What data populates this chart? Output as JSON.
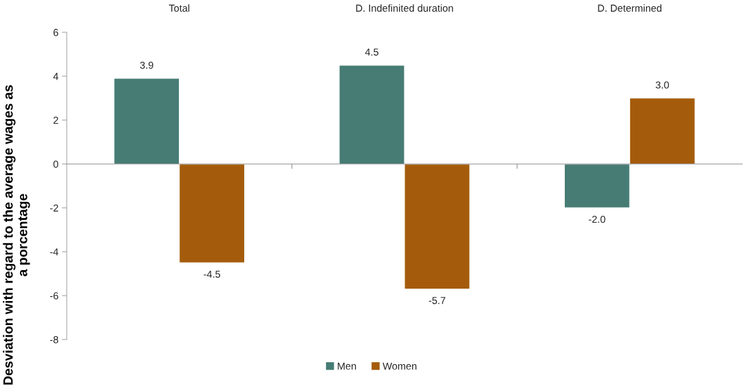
{
  "chart_data": {
    "type": "bar",
    "categories": [
      "Total",
      "D. Indefinited duration",
      "D. Determined"
    ],
    "series": [
      {
        "name": "Men",
        "color": "#467c74",
        "values": [
          3.9,
          4.5,
          -2.0
        ],
        "value_labels": [
          "3.9",
          "4.5",
          "-2.0"
        ]
      },
      {
        "name": "Women",
        "color": "#a45c0c",
        "values": [
          -4.5,
          -5.7,
          3.0
        ],
        "value_labels": [
          "-4.5",
          "-5.7",
          "3.0"
        ]
      }
    ],
    "ylabel": "Desviation with regard to the average wages as a porcentage",
    "ylim": [
      -8,
      6
    ],
    "yticks": [
      -8,
      -6,
      -4,
      -2,
      0,
      2,
      4,
      6
    ],
    "legend": "bottom"
  }
}
